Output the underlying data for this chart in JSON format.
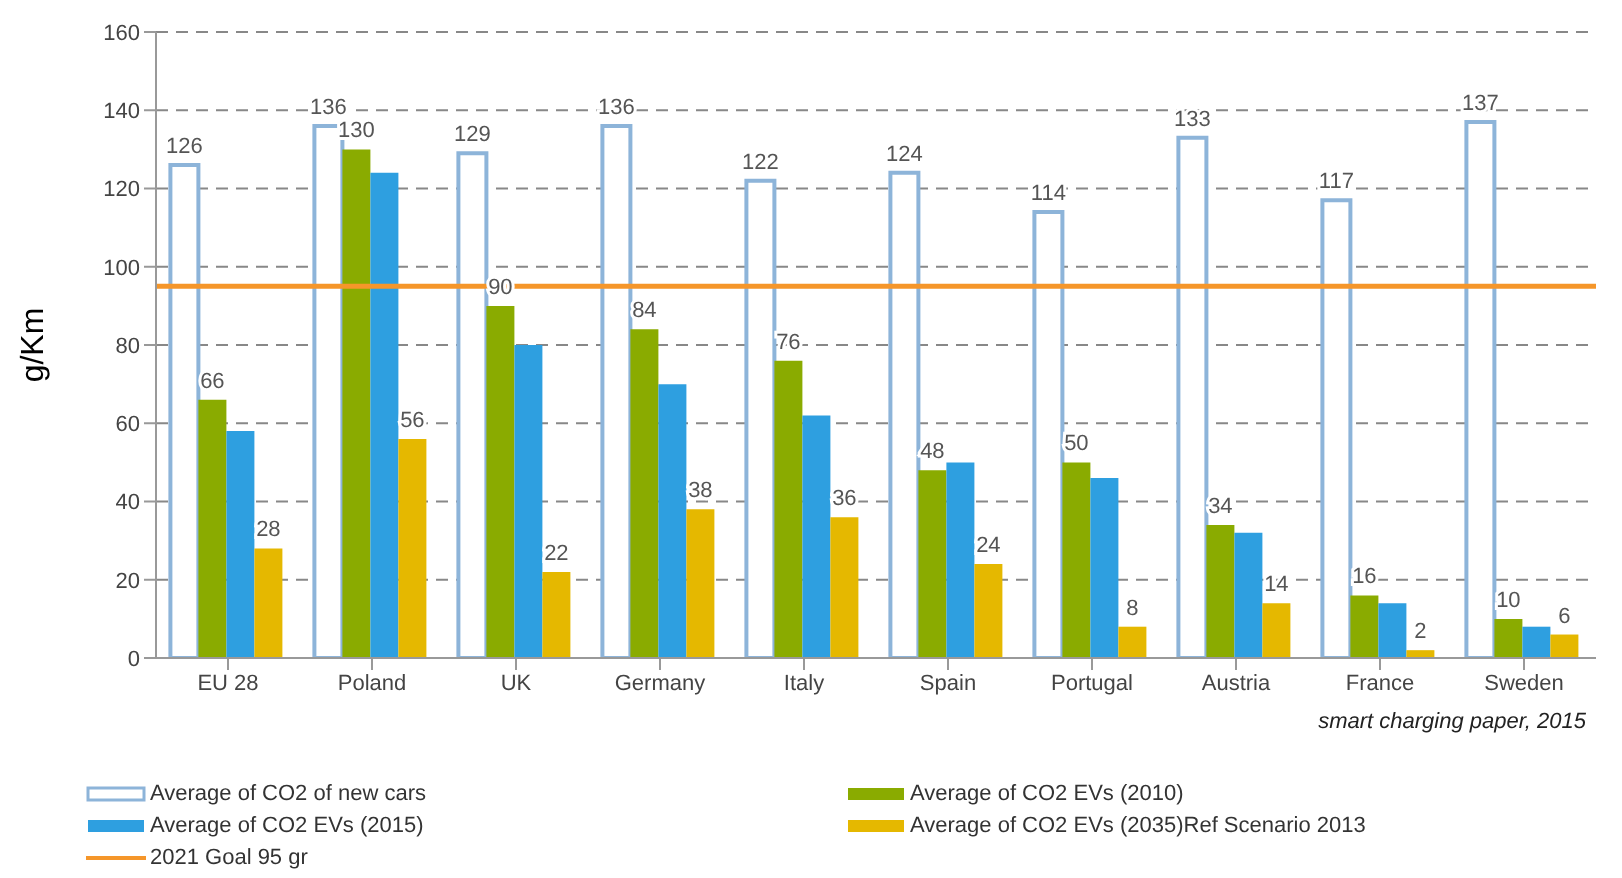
{
  "chart_data": {
    "type": "bar",
    "ylabel": "g/Km",
    "categories": [
      "EU 28",
      "Poland",
      "UK",
      "Germany",
      "Italy",
      "Spain",
      "Portugal",
      "Austria",
      "France",
      "Sweden"
    ],
    "series": [
      {
        "name": "Average of CO2 of new cars",
        "color": "#8db4d9",
        "values": [
          126,
          136,
          129,
          136,
          122,
          124,
          114,
          133,
          117,
          137
        ],
        "value_labels": [
          "126",
          "136",
          "129",
          "136",
          "122",
          "124",
          "114",
          "133",
          "117",
          "137"
        ]
      },
      {
        "name": "Average of CO2 EVs (2010)",
        "color": "#8aab00",
        "values": [
          66,
          130,
          90,
          84,
          76,
          48,
          50,
          34,
          16,
          10
        ],
        "value_labels": [
          "66",
          "130",
          "90",
          "84",
          "76",
          "48",
          "50",
          "34",
          "16",
          "10"
        ]
      },
      {
        "name": "Average of CO2 EVs (2015)",
        "color": "#2e9fe0",
        "values": [
          58,
          124,
          80,
          70,
          62,
          50,
          46,
          32,
          14,
          8
        ]
      },
      {
        "name": "Average of CO2 EVs (2035)Ref Scenario 2013",
        "color": "#e5b800",
        "values": [
          28,
          56,
          22,
          38,
          36,
          24,
          8,
          14,
          2,
          6
        ],
        "value_labels": [
          "28",
          "56",
          "22",
          "38",
          "36",
          "24",
          "8",
          "14",
          "2",
          "6"
        ]
      }
    ],
    "ref_lines": [
      {
        "axis": "y",
        "value": 95,
        "label": "2021 Goal 95 gr",
        "color": "#f5962a"
      }
    ],
    "ylim": [
      0,
      160
    ],
    "yticks": [
      0,
      20,
      40,
      60,
      80,
      100,
      120,
      140,
      160
    ],
    "grid": "y",
    "legend": "bottom",
    "annotations": [
      "smart charging paper, 2015"
    ]
  }
}
